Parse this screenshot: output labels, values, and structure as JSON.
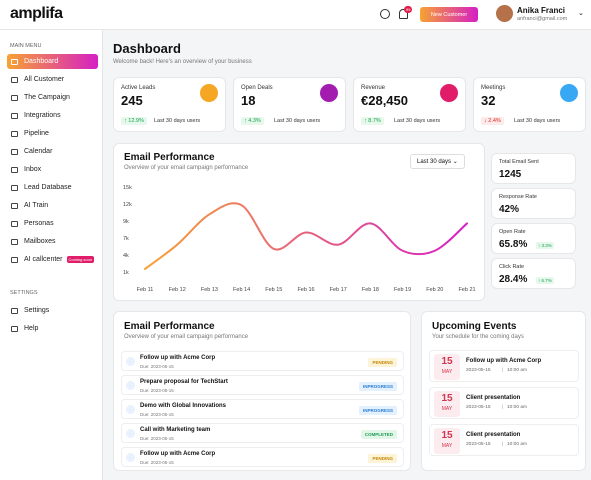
{
  "header": {
    "logo": "amplifa",
    "notification_count": "99",
    "new_customer": "New Customer",
    "user_name": "Anika Franci",
    "user_email": "anfranci@gmail.com"
  },
  "sidebar": {
    "main_title": "MAIN MENU",
    "items": [
      {
        "label": "Dashboard",
        "active": true
      },
      {
        "label": "All Customer"
      },
      {
        "label": "The Campaign"
      },
      {
        "label": "Integrations"
      },
      {
        "label": "Pipeline"
      },
      {
        "label": "Calendar"
      },
      {
        "label": "Inbox"
      },
      {
        "label": "Lead Database"
      },
      {
        "label": "AI Train"
      },
      {
        "label": "Personas"
      },
      {
        "label": "Mailboxes"
      },
      {
        "label": "AI callcenter",
        "badge": "Coming soon"
      }
    ],
    "settings_title": "SETTINGS",
    "settings_items": [
      {
        "label": "Settings"
      },
      {
        "label": "Help"
      }
    ]
  },
  "page": {
    "title": "Dashboard",
    "subtitle": "Welcome back! Here's an overview of your business"
  },
  "stats": [
    {
      "label": "Active Leads",
      "value": "245",
      "change": "12.9%",
      "period": "Last 30 days users",
      "trend": "up",
      "color": "#f5a623"
    },
    {
      "label": "Open Deals",
      "value": "18",
      "change": "4.3%",
      "period": "Last 30 days users",
      "trend": "up",
      "color": "#a21caf"
    },
    {
      "label": "Revenue",
      "value": "€28,450",
      "change": "8.7%",
      "period": "Last 30 days users",
      "trend": "up",
      "color": "#e11d6a"
    },
    {
      "label": "Meetings",
      "value": "32",
      "change": "2.4%",
      "period": "Last 30 days users",
      "trend": "down",
      "color": "#38a8f5"
    }
  ],
  "email_performance": {
    "title": "Email Performance",
    "subtitle": "Overview of your email campaign performance",
    "range": "Last 30 days",
    "metrics": [
      {
        "label": "Total Email Sent",
        "value": "1245"
      },
      {
        "label": "Response Rate",
        "value": "42%"
      },
      {
        "label": "Open Rate",
        "value": "65.8%",
        "change": "3.3%"
      },
      {
        "label": "Click Rate",
        "value": "28.4%",
        "change": "6.7%"
      }
    ]
  },
  "chart_data": {
    "type": "line",
    "categories": [
      "Feb 11",
      "Feb 12",
      "Feb 13",
      "Feb 14",
      "Feb 15",
      "Feb 16",
      "Feb 17",
      "Feb 18",
      "Feb 19",
      "Feb 20",
      "Feb 21"
    ],
    "values": [
      1500,
      5500,
      10500,
      12000,
      4800,
      7500,
      5500,
      9000,
      4500,
      4500,
      9000
    ],
    "ylim": [
      1000,
      15000
    ],
    "yticks": [
      {
        "value": 15000,
        "label": "15k"
      },
      {
        "value": 12200,
        "label": "12k"
      },
      {
        "value": 9400,
        "label": "9k"
      },
      {
        "value": 6600,
        "label": "7k"
      },
      {
        "value": 3800,
        "label": "4k"
      },
      {
        "value": 1000,
        "label": "1k"
      }
    ],
    "colors": [
      "#f7a233",
      "#d61fc4"
    ]
  },
  "tasks": {
    "title": "Email Performance",
    "subtitle": "Overview of your email campaign performance",
    "items": [
      {
        "title": "Follow up with Acme Corp",
        "due": "Due: 2023-05-15",
        "status": "PENDING"
      },
      {
        "title": "Prepare proposal for TechStart",
        "due": "Due: 2023-05-15",
        "status": "INPROGRESS"
      },
      {
        "title": "Demo with Global Innovations",
        "due": "Due: 2023-05-15",
        "status": "INPROGRESS"
      },
      {
        "title": "Call with Marketing team",
        "due": "Due: 2023-05-15",
        "status": "COMPLETED"
      },
      {
        "title": "Follow up with Acme Corp",
        "due": "Due: 2023-05-15",
        "status": "PENDING"
      }
    ]
  },
  "events": {
    "title": "Upcoming Events",
    "subtitle": "Your schedule for the coming days",
    "items": [
      {
        "day": "15",
        "month": "MAY",
        "title": "Follow up with Acme Corp",
        "date": "2023-05-15",
        "time": "10:00 am"
      },
      {
        "day": "15",
        "month": "MAY",
        "title": "Client presentation",
        "date": "2023-05-15",
        "time": "10:00 am"
      },
      {
        "day": "15",
        "month": "MAY",
        "title": "Client presentation",
        "date": "2023-05-15",
        "time": "10:00 am"
      }
    ]
  }
}
